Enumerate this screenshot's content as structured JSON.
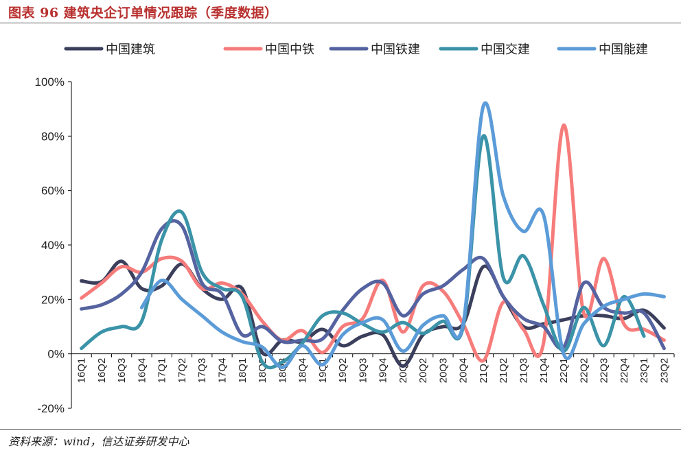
{
  "header": {
    "title": "图表 96 建筑央企订单情况跟踪（季度数据）"
  },
  "footer": {
    "source": "资料来源：wind，信达证券研发中心"
  },
  "chart_data": {
    "type": "line",
    "smooth": true,
    "title": "",
    "xlabel": "",
    "ylabel": "",
    "ylim": [
      -20,
      100
    ],
    "yticks": [
      -20,
      0,
      20,
      40,
      60,
      80,
      100
    ],
    "ytick_labels": [
      "-20%",
      "0%",
      "20%",
      "40%",
      "60%",
      "80%",
      "100%"
    ],
    "y_unit": "%",
    "grid": false,
    "legend_position": "top",
    "categories": [
      "16Q1",
      "16Q2",
      "16Q3",
      "16Q4",
      "17Q1",
      "17Q2",
      "17Q3",
      "17Q4",
      "18Q1",
      "18Q2",
      "18Q3",
      "18Q4",
      "19Q1",
      "19Q2",
      "19Q3",
      "19Q4",
      "20Q1",
      "20Q2",
      "20Q3",
      "20Q4",
      "21Q1",
      "21Q2",
      "21Q3",
      "21Q4",
      "22Q1",
      "22Q2",
      "22Q3",
      "22Q4",
      "23Q1",
      "23Q2"
    ],
    "series": [
      {
        "name": "中国建筑",
        "color": "#3b3f5c",
        "values": [
          26.8,
          26.5,
          34,
          24,
          25,
          33,
          24,
          20,
          24,
          0.5,
          5,
          4.5,
          9,
          3,
          6.5,
          7,
          -4.5,
          7,
          10,
          11,
          32,
          21,
          10,
          11,
          12.5,
          14,
          14,
          13,
          16,
          9.5
        ]
      },
      {
        "name": "中国中铁",
        "color": "#f67c7b",
        "values": [
          20.5,
          26,
          32,
          30,
          35,
          34,
          24,
          26,
          22,
          12,
          5,
          8.5,
          0.5,
          10,
          13,
          27,
          8,
          25,
          23,
          11,
          -2.5,
          19,
          9,
          4,
          84,
          15,
          35,
          11,
          9,
          5
        ]
      },
      {
        "name": "中国铁建",
        "color": "#5563a0",
        "values": [
          16.5,
          18,
          22,
          30,
          46,
          47,
          26,
          22,
          7,
          10,
          4.5,
          5,
          5.5,
          16,
          24,
          26,
          14,
          22,
          25,
          31,
          35,
          21,
          13,
          10,
          2.5,
          26,
          17,
          15,
          15,
          2
        ]
      },
      {
        "name": "中国交建",
        "color": "#3b93a8",
        "values": [
          2,
          8,
          10,
          12,
          42,
          52,
          30,
          24,
          21,
          -3,
          -3,
          4,
          14,
          15,
          11,
          8,
          11.5,
          7.5,
          12,
          10,
          80,
          28,
          36,
          18,
          1,
          17,
          3,
          21,
          6.5,
          null
        ]
      },
      {
        "name": "中国能建",
        "color": "#5b9bd8",
        "values": [
          null,
          null,
          null,
          17,
          27,
          20,
          14,
          8,
          4.5,
          2.5,
          -5,
          3,
          -4,
          7,
          11.5,
          12.5,
          1,
          10.5,
          14,
          11,
          91,
          58,
          45,
          51,
          0,
          11,
          17.5,
          20,
          22,
          21
        ]
      }
    ]
  }
}
